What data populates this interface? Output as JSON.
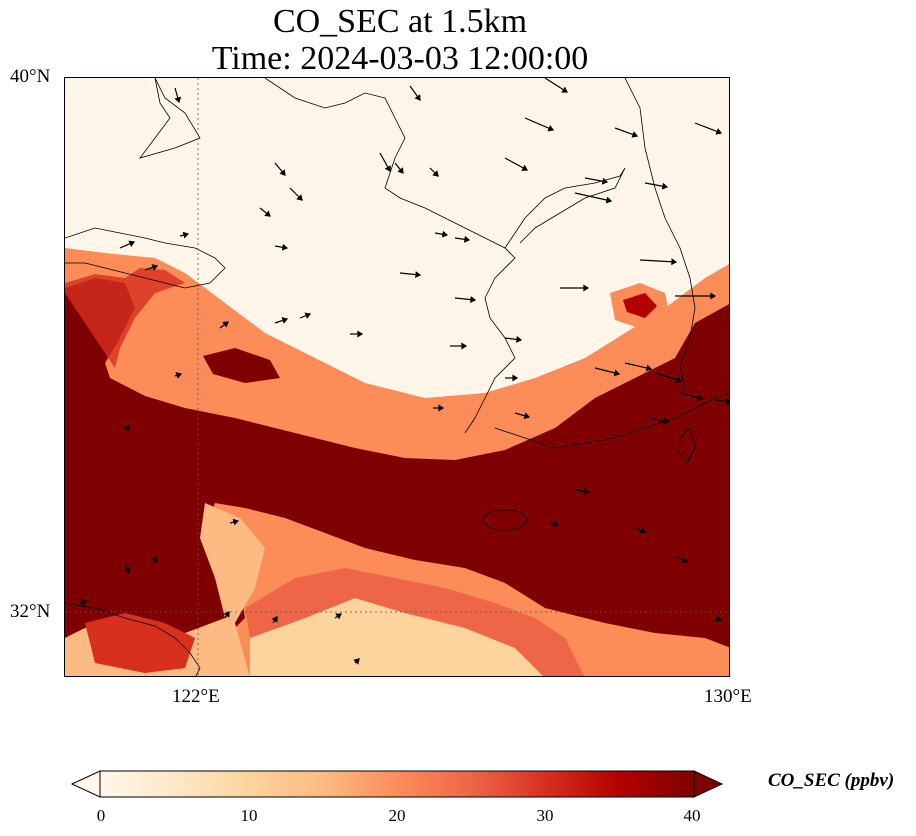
{
  "title": {
    "line1": "CO_SEC at 1.5km",
    "line2": "Time: 2024-03-03 12:00:00"
  },
  "map": {
    "lat_labels": [
      "40°N",
      "32°N"
    ],
    "lon_labels": [
      "122°E",
      "130°E"
    ],
    "extent": {
      "lon_min": 120,
      "lon_max": 130,
      "lat_min": 31,
      "lat_max": 40
    },
    "gridlines": {
      "lons": [
        122,
        130
      ],
      "lats": [
        40,
        32
      ],
      "style": "dotted"
    },
    "features": [
      "coastlines",
      "wind-vectors",
      "filled-concentration-field"
    ]
  },
  "colorbar": {
    "title": "CO_SEC (ppbv)",
    "ticks": [
      "0",
      "10",
      "20",
      "30",
      "40"
    ],
    "min": 0,
    "max": 40,
    "extend": "both",
    "colormap": "OrRd",
    "colors": [
      "#fff7ec",
      "#fee8c8",
      "#fdd49e",
      "#fdbb84",
      "#fc8d59",
      "#ef6548",
      "#d7301f",
      "#b30000",
      "#7f0000"
    ]
  }
}
